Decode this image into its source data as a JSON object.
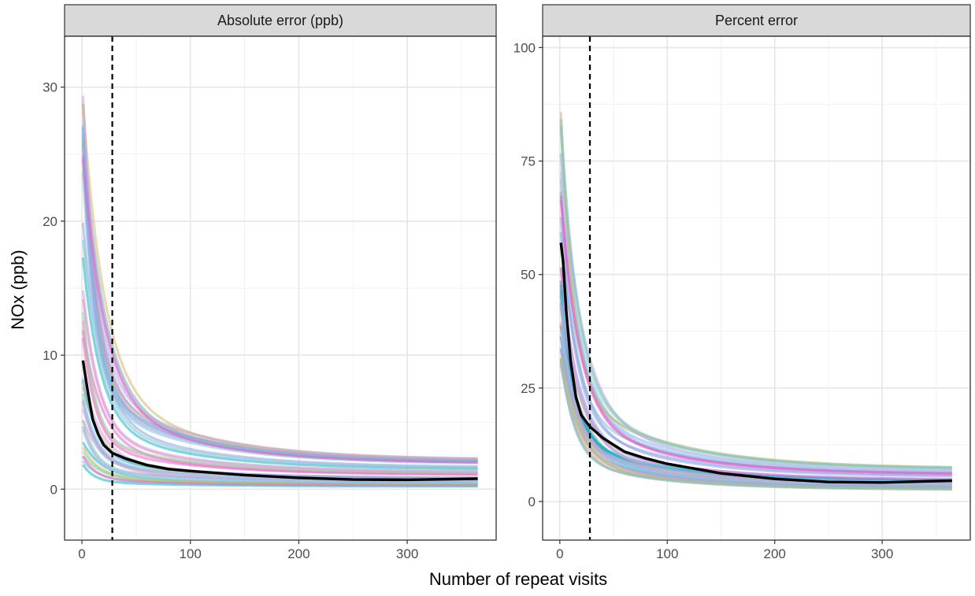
{
  "chart_data": {
    "type": "line",
    "xlabel": "Number of repeat visits",
    "ylabel": "NOx (ppb)",
    "grid": true,
    "legend": "none",
    "reference_line": {
      "x": 28,
      "style": "dashed",
      "color": "#000000"
    },
    "panels": [
      {
        "title": "Absolute error (ppb)",
        "xlim": [
          -16,
          382
        ],
        "ylim": [
          -3.8,
          33.8
        ],
        "x_ticks": [
          0,
          100,
          200,
          300
        ],
        "x_tick_labels": [
          "0",
          "100",
          "200",
          "300"
        ],
        "y_ticks": [
          0,
          10,
          20,
          30
        ],
        "y_tick_labels": [
          "0",
          "10",
          "20",
          "30"
        ],
        "x": [
          1,
          3,
          6,
          10,
          15,
          20,
          28,
          40,
          60,
          80,
          100,
          150,
          200,
          250,
          300,
          365
        ],
        "summary_series": {
          "values": [
            9.6,
            8.5,
            7.0,
            5.2,
            4.1,
            3.3,
            2.7,
            2.3,
            1.8,
            1.5,
            1.35,
            1.05,
            0.85,
            0.72,
            0.7,
            0.78
          ],
          "color": "#000000"
        },
        "background_series_range": {
          "y_at_start": [
            1.8,
            29.5
          ],
          "y_at_end": [
            0.2,
            2.2
          ]
        },
        "background_colors": [
          "#8fd3a8",
          "#7dc4cc",
          "#19b2c4",
          "#8da0e5",
          "#c7a3e8",
          "#e066c9",
          "#f08ab8",
          "#d4b86a",
          "#a8c8f0"
        ]
      },
      {
        "title": "Percent error",
        "xlim": [
          -16,
          382
        ],
        "ylim": [
          -8.5,
          102.5
        ],
        "x_ticks": [
          0,
          100,
          200,
          300
        ],
        "x_tick_labels": [
          "0",
          "100",
          "200",
          "300"
        ],
        "y_ticks": [
          0,
          25,
          50,
          75,
          100
        ],
        "y_tick_labels": [
          "0",
          "25",
          "50",
          "75",
          "100"
        ],
        "x": [
          1,
          3,
          6,
          10,
          15,
          20,
          28,
          40,
          60,
          80,
          100,
          150,
          200,
          250,
          300,
          365
        ],
        "summary_series": {
          "values": [
            57,
            53,
            42,
            31,
            23,
            19,
            16.5,
            14,
            11,
            9.5,
            8.3,
            6.2,
            5.0,
            4.3,
            4.2,
            4.6
          ],
          "color": "#000000"
        },
        "background_series_range": {
          "y_at_start": [
            30,
            89
          ],
          "y_at_end": [
            2.5,
            7.5
          ]
        },
        "background_colors": [
          "#8fd3a8",
          "#7dc4cc",
          "#19b2c4",
          "#8da0e5",
          "#c7a3e8",
          "#e066c9",
          "#f08ab8",
          "#d4b86a",
          "#a8c8f0"
        ]
      }
    ]
  }
}
